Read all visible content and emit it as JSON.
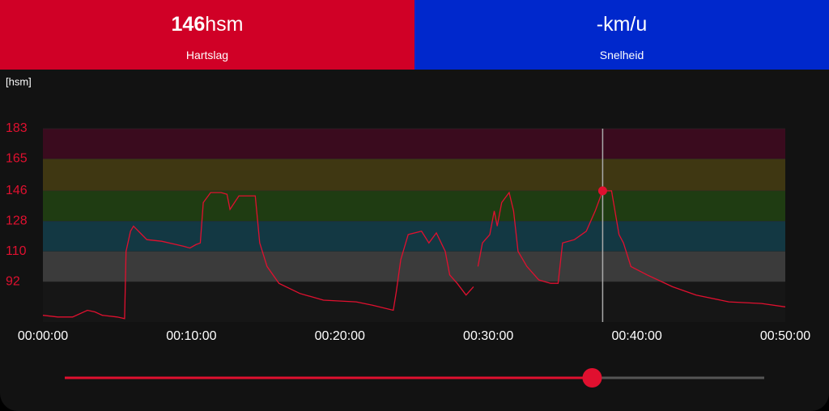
{
  "header": {
    "heart_rate": {
      "value": "146",
      "unit": "hsm",
      "label": "Hartslag"
    },
    "speed": {
      "text": "-km/u",
      "label": "Snelheid"
    }
  },
  "chart_data": {
    "type": "line",
    "y_label": "[hsm]",
    "x": [
      0,
      1,
      2,
      3,
      3.5,
      4,
      5,
      5.5,
      5.6,
      5.9,
      6.1,
      7,
      8,
      9,
      9.5,
      9.9,
      10.3,
      10.6,
      10.8,
      11.3,
      12,
      12.4,
      12.6,
      13.2,
      14.3,
      14.6,
      15.1,
      15.9,
      17.3,
      18.9,
      21.1,
      22.2,
      23.6,
      23.8,
      24.1,
      24.6,
      25.5,
      26,
      26.5,
      27.1,
      27.4,
      27.9,
      28.5,
      29,
      29.1,
      29.3,
      29.6,
      30.1,
      30.4,
      30.6,
      30.9,
      31.4,
      31.7,
      32,
      32.6,
      33.4,
      34.2,
      34.7,
      35,
      35.8,
      36.6,
      37.2,
      37.7,
      38.3,
      38.8,
      39.1,
      39.6,
      40.7,
      42.4,
      44,
      46.2,
      48.4,
      50
    ],
    "values": [
      72,
      71,
      71,
      75,
      74,
      72,
      71,
      70,
      110,
      122,
      125,
      117,
      116,
      114,
      113,
      112,
      114,
      115,
      139,
      145,
      145,
      144,
      135,
      143,
      143,
      115,
      101,
      91,
      85,
      81,
      80,
      78,
      75,
      86,
      105,
      120,
      122,
      115,
      121,
      110,
      96,
      91,
      84,
      89,
      null,
      101,
      115,
      120,
      134,
      125,
      139,
      145,
      134,
      110,
      101,
      93,
      91,
      91,
      115,
      117,
      122,
      134,
      146,
      146,
      120,
      115,
      101,
      96,
      89,
      84,
      80,
      79,
      77
    ],
    "color": "#e0102f",
    "xlim": [
      0,
      50
    ],
    "ylim": [
      68,
      183
    ],
    "xticks": [
      {
        "value": 0,
        "label": "00:00:00"
      },
      {
        "value": 10,
        "label": "00:10:00"
      },
      {
        "value": 20,
        "label": "00:20:00"
      },
      {
        "value": 30,
        "label": "00:30:00"
      },
      {
        "value": 40,
        "label": "00:40:00"
      },
      {
        "value": 50,
        "label": "00:50:00"
      }
    ],
    "yticks": [
      92,
      110,
      128,
      146,
      165,
      183
    ],
    "zone_colors": [
      "#161616",
      "#3b3b3b",
      "#133843",
      "#1f3c12",
      "#3f3712",
      "#3a0b1e"
    ],
    "cursor": {
      "x": 37.7,
      "y": 146
    }
  }
}
